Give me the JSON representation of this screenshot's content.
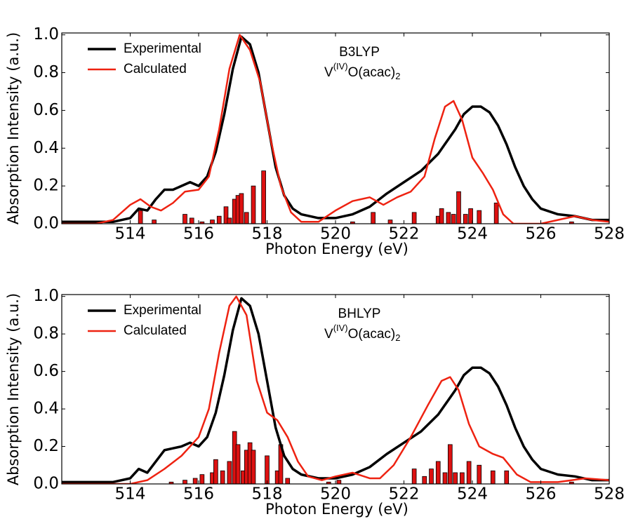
{
  "chart_data": [
    {
      "type": "line",
      "xlabel": "Photon Energy (eV)",
      "ylabel": "Absorption Intensity (a.u.)",
      "annotation": {
        "method": "B3LYP",
        "formula": [
          "V",
          "(IV)",
          "O(acac)",
          "2"
        ]
      },
      "xlim": [
        512,
        528
      ],
      "ylim": [
        0,
        1.01
      ],
      "xticks": [
        514,
        516,
        518,
        520,
        522,
        524,
        526,
        528
      ],
      "yticks": [
        {
          "value": 0,
          "label": "0.0"
        },
        {
          "value": 0.2,
          "label": "0.2"
        },
        {
          "value": 0.4,
          "label": "0.4"
        },
        {
          "value": 0.6,
          "label": "0.6"
        },
        {
          "value": 0.8,
          "label": "0.8"
        },
        {
          "value": 1,
          "label": "1.0"
        }
      ],
      "legend": "upper left",
      "series": [
        {
          "name": "Experimental",
          "color": "#000000",
          "x": [
            512,
            512.5,
            513,
            513.5,
            514,
            514.25,
            514.5,
            514.75,
            515,
            515.25,
            515.5,
            515.75,
            516,
            516.25,
            516.5,
            516.75,
            517,
            517.25,
            517.5,
            517.75,
            518,
            518.25,
            518.5,
            518.75,
            519,
            519.5,
            520,
            520.5,
            521,
            521.5,
            522,
            522.5,
            523,
            523.5,
            523.75,
            524,
            524.25,
            524.5,
            524.75,
            525,
            525.25,
            525.5,
            525.75,
            526,
            526.5,
            527,
            527.5,
            528
          ],
          "values": [
            0.01,
            0.01,
            0.01,
            0.01,
            0.03,
            0.08,
            0.07,
            0.13,
            0.18,
            0.18,
            0.2,
            0.22,
            0.2,
            0.25,
            0.38,
            0.58,
            0.82,
            0.99,
            0.95,
            0.8,
            0.55,
            0.3,
            0.15,
            0.08,
            0.05,
            0.03,
            0.03,
            0.05,
            0.09,
            0.16,
            0.22,
            0.28,
            0.37,
            0.5,
            0.58,
            0.62,
            0.62,
            0.59,
            0.52,
            0.42,
            0.3,
            0.2,
            0.13,
            0.08,
            0.05,
            0.04,
            0.02,
            0.02
          ]
        },
        {
          "name": "Calculated",
          "color": "#ee2211",
          "x": [
            512,
            513,
            513.5,
            514,
            514.3,
            514.6,
            514.9,
            515.25,
            515.6,
            516,
            516.3,
            516.6,
            516.9,
            517.2,
            517.5,
            517.8,
            518.1,
            518.4,
            518.7,
            519,
            519.5,
            520,
            520.5,
            521,
            521.4,
            521.8,
            522.2,
            522.6,
            522.9,
            523.2,
            523.45,
            523.7,
            524,
            524.3,
            524.6,
            524.9,
            525.2,
            526,
            526.5,
            527,
            527.5,
            528
          ],
          "values": [
            0,
            0,
            0.02,
            0.1,
            0.13,
            0.09,
            0.07,
            0.11,
            0.17,
            0.18,
            0.25,
            0.5,
            0.82,
            1.0,
            0.92,
            0.75,
            0.45,
            0.2,
            0.06,
            0.01,
            0.01,
            0.07,
            0.12,
            0.14,
            0.1,
            0.14,
            0.17,
            0.25,
            0.45,
            0.62,
            0.65,
            0.55,
            0.35,
            0.27,
            0.18,
            0.05,
            0,
            0,
            0.02,
            0.04,
            0.02,
            0.01
          ]
        }
      ],
      "bars": {
        "color": "#dd1111",
        "x": [
          514.3,
          514.7,
          515.6,
          515.8,
          516.1,
          516.4,
          516.6,
          516.8,
          516.9,
          517.05,
          517.15,
          517.25,
          517.4,
          517.6,
          517.9,
          520.5,
          521.1,
          521.6,
          522.3,
          523.0,
          523.1,
          523.3,
          523.45,
          523.6,
          523.8,
          523.95,
          524.2,
          524.7,
          526.9
        ],
        "values": [
          0.07,
          0.02,
          0.05,
          0.03,
          0.01,
          0.02,
          0.04,
          0.09,
          0.03,
          0.13,
          0.15,
          0.16,
          0.06,
          0.2,
          0.28,
          0.01,
          0.06,
          0.02,
          0.06,
          0.04,
          0.08,
          0.06,
          0.05,
          0.17,
          0.05,
          0.08,
          0.07,
          0.11,
          0.01
        ]
      }
    },
    {
      "type": "line",
      "xlabel": "Photon Energy (eV)",
      "ylabel": "Absorption Intensity (a.u.)",
      "annotation": {
        "method": "BHLYP",
        "formula": [
          "V",
          "(IV)",
          "O(acac)",
          "2"
        ]
      },
      "xlim": [
        512,
        528
      ],
      "ylim": [
        0,
        1.01
      ],
      "xticks": [
        514,
        516,
        518,
        520,
        522,
        524,
        526,
        528
      ],
      "yticks": [
        {
          "value": 0,
          "label": "0.0"
        },
        {
          "value": 0.2,
          "label": "0.2"
        },
        {
          "value": 0.4,
          "label": "0.4"
        },
        {
          "value": 0.6,
          "label": "0.6"
        },
        {
          "value": 0.8,
          "label": "0.8"
        },
        {
          "value": 1,
          "label": "1.0"
        }
      ],
      "legend": "upper left",
      "series": [
        {
          "name": "Experimental",
          "color": "#000000",
          "x": [
            512,
            512.5,
            513,
            513.5,
            514,
            514.25,
            514.5,
            514.75,
            515,
            515.25,
            515.5,
            515.75,
            516,
            516.25,
            516.5,
            516.75,
            517,
            517.25,
            517.5,
            517.75,
            518,
            518.25,
            518.5,
            518.75,
            519,
            519.5,
            520,
            520.5,
            521,
            521.5,
            522,
            522.5,
            523,
            523.5,
            523.75,
            524,
            524.25,
            524.5,
            524.75,
            525,
            525.25,
            525.5,
            525.75,
            526,
            526.5,
            527,
            527.5,
            528
          ],
          "values": [
            0.01,
            0.01,
            0.01,
            0.01,
            0.03,
            0.08,
            0.06,
            0.12,
            0.18,
            0.19,
            0.2,
            0.22,
            0.2,
            0.25,
            0.38,
            0.58,
            0.82,
            0.99,
            0.95,
            0.8,
            0.55,
            0.3,
            0.15,
            0.08,
            0.05,
            0.03,
            0.03,
            0.05,
            0.09,
            0.16,
            0.22,
            0.28,
            0.37,
            0.5,
            0.58,
            0.62,
            0.62,
            0.59,
            0.52,
            0.42,
            0.3,
            0.2,
            0.13,
            0.08,
            0.05,
            0.04,
            0.02,
            0.02
          ]
        },
        {
          "name": "Calculated",
          "color": "#ee2211",
          "x": [
            512,
            514,
            514.5,
            515,
            515.5,
            516,
            516.3,
            516.6,
            516.9,
            517.1,
            517.4,
            517.7,
            518,
            518.3,
            518.6,
            518.9,
            519.2,
            519.6,
            520,
            520.5,
            521,
            521.3,
            521.7,
            522.2,
            522.7,
            523.1,
            523.35,
            523.6,
            523.9,
            524.2,
            524.6,
            524.9,
            525.3,
            525.7,
            526.5,
            527.3,
            528
          ],
          "values": [
            0,
            0,
            0.02,
            0.08,
            0.15,
            0.25,
            0.4,
            0.7,
            0.95,
            1.0,
            0.9,
            0.55,
            0.38,
            0.34,
            0.25,
            0.12,
            0.04,
            0.02,
            0.04,
            0.06,
            0.03,
            0.03,
            0.1,
            0.25,
            0.42,
            0.55,
            0.57,
            0.5,
            0.32,
            0.2,
            0.16,
            0.14,
            0.05,
            0.01,
            0.01,
            0.03,
            0.02
          ]
        }
      ],
      "bars": {
        "color": "#dd1111",
        "x": [
          515.2,
          515.6,
          515.9,
          516.1,
          516.4,
          516.5,
          516.7,
          516.9,
          517.05,
          517.15,
          517.3,
          517.4,
          517.5,
          517.6,
          518.0,
          518.3,
          518.4,
          518.6,
          519.8,
          520.1,
          522.3,
          522.6,
          522.8,
          523.0,
          523.2,
          523.35,
          523.5,
          523.7,
          523.9,
          524.2,
          524.6,
          525.0,
          526.9
        ],
        "values": [
          0.01,
          0.02,
          0.03,
          0.05,
          0.06,
          0.13,
          0.07,
          0.12,
          0.28,
          0.21,
          0.07,
          0.18,
          0.22,
          0.18,
          0.15,
          0.07,
          0.21,
          0.03,
          0.01,
          0.02,
          0.08,
          0.04,
          0.08,
          0.12,
          0.06,
          0.21,
          0.06,
          0.06,
          0.12,
          0.1,
          0.07,
          0.07,
          0.01
        ]
      }
    }
  ]
}
